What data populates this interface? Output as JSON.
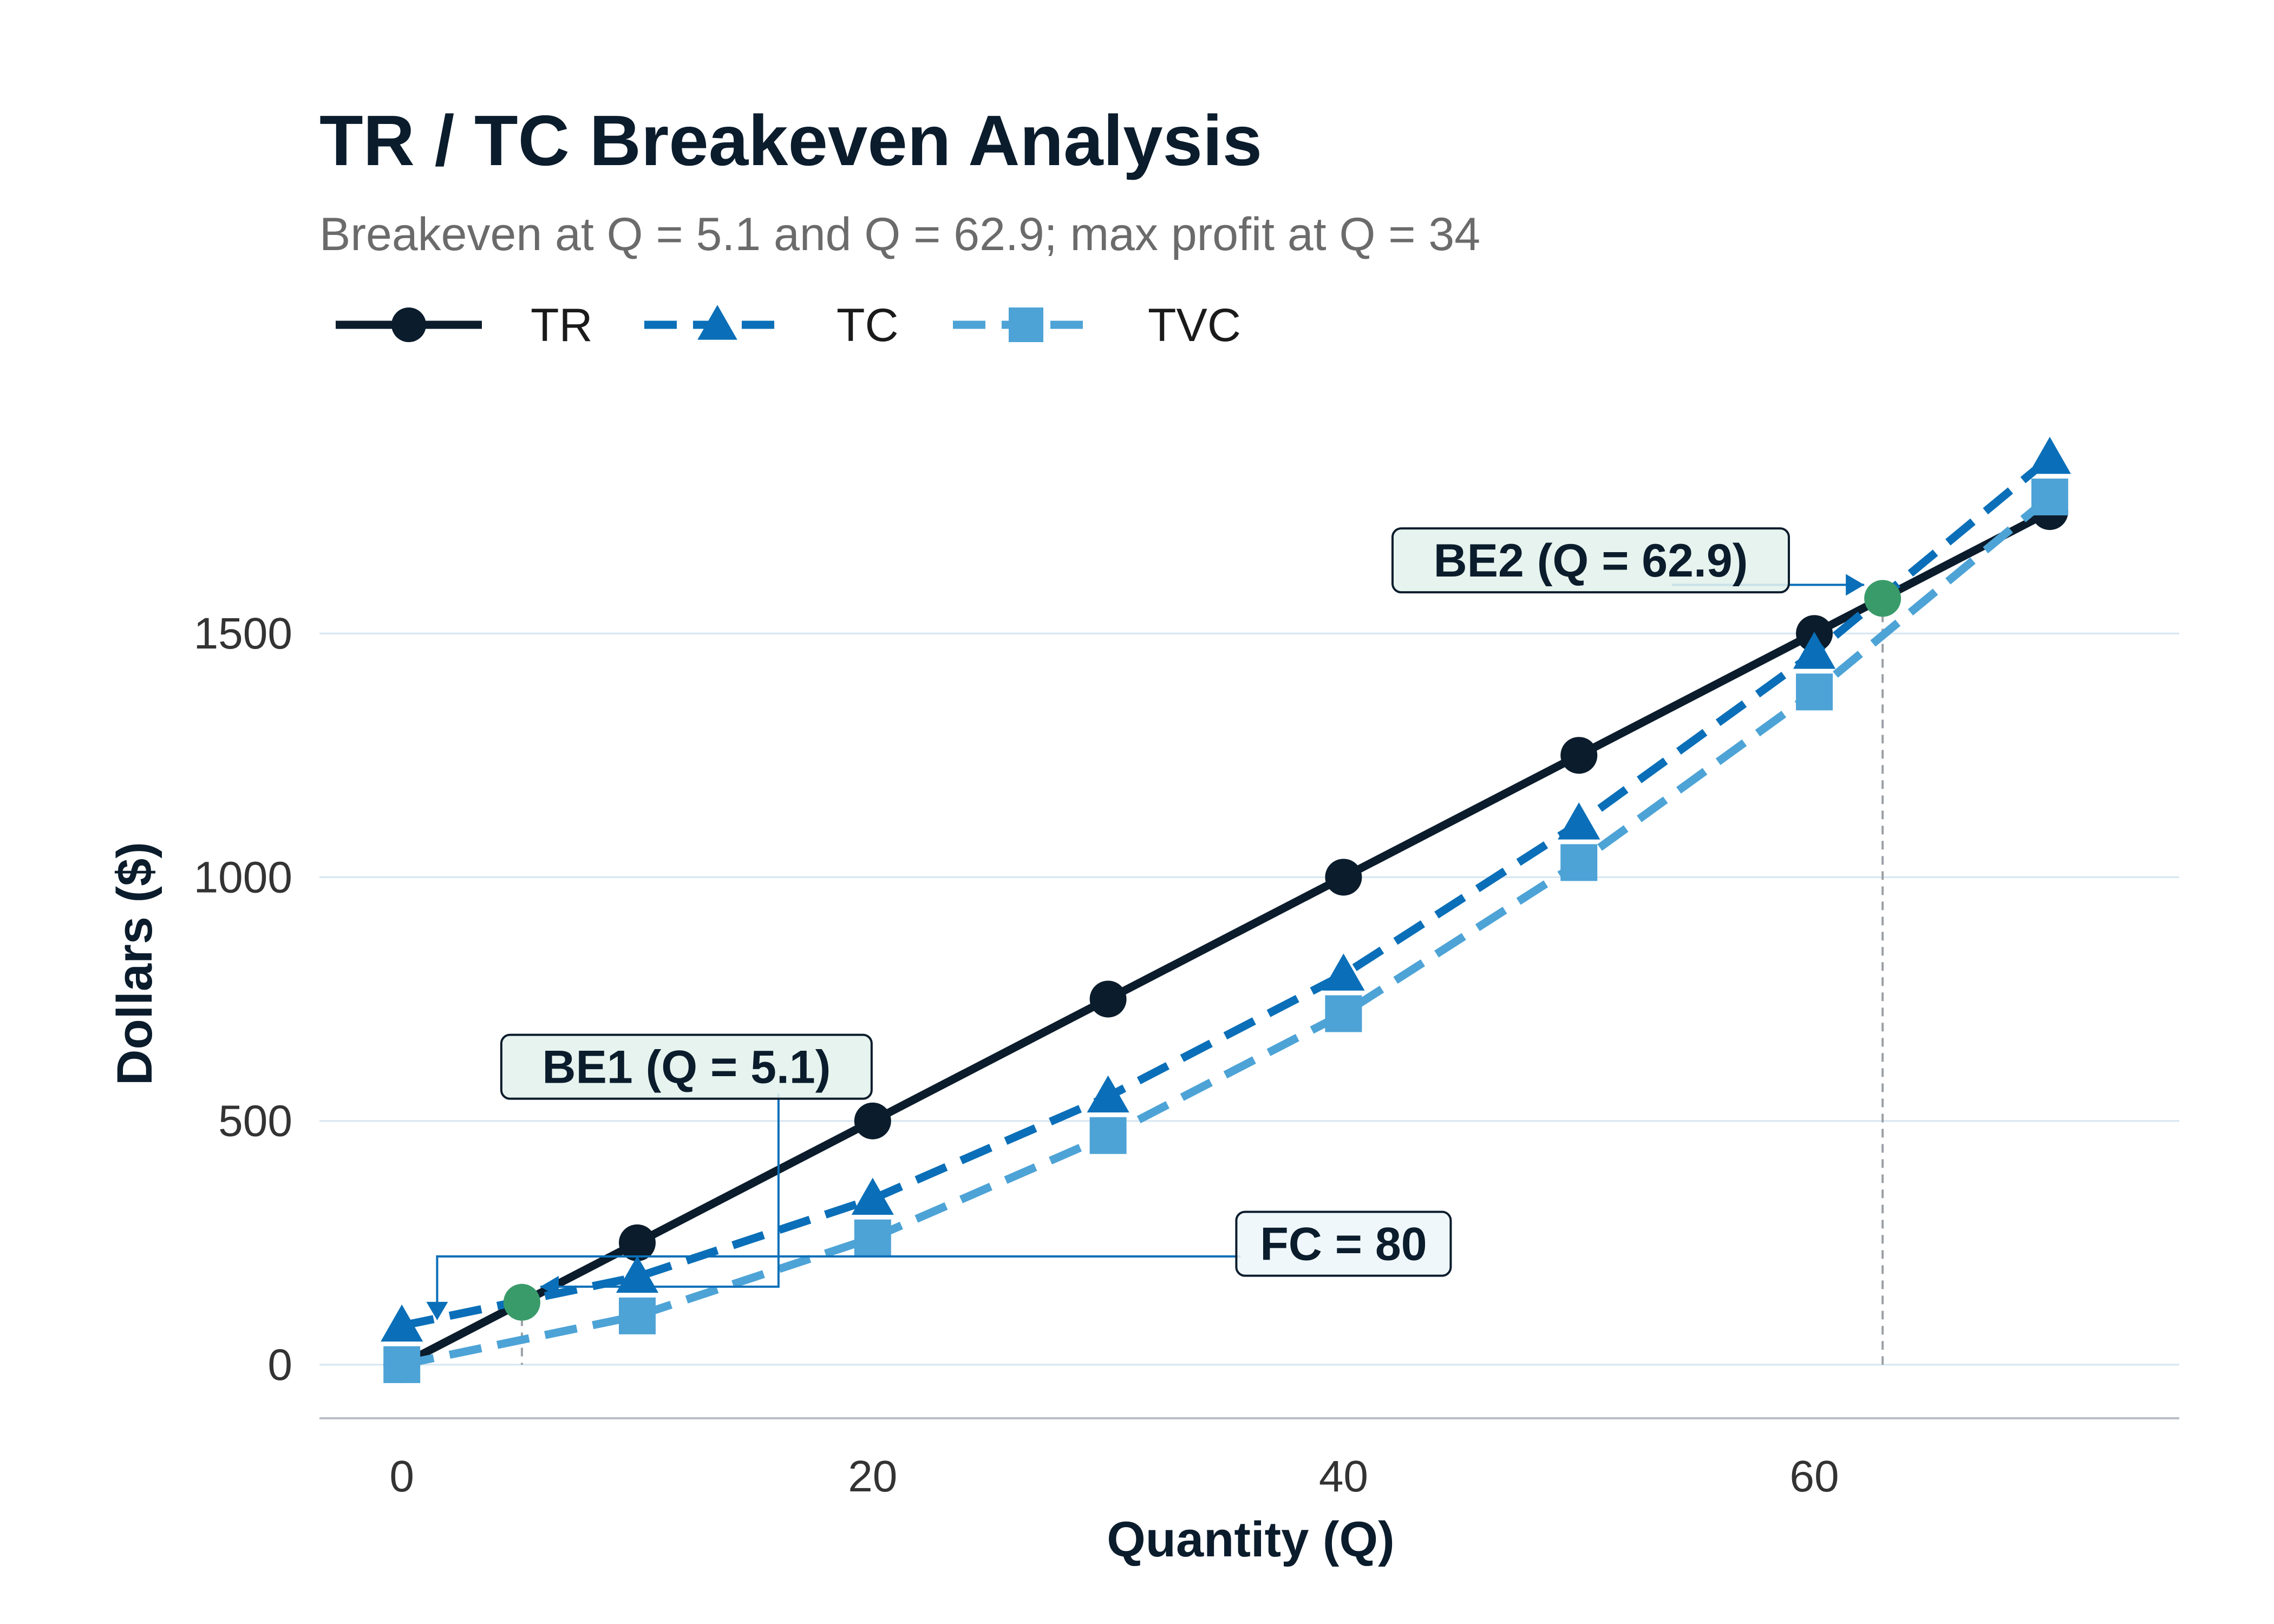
{
  "chart_data": {
    "type": "line",
    "title": "TR / TC Breakeven Analysis",
    "subtitle": "Breakeven at Q = 5.1 and Q = 62.9; max profit at Q = 34",
    "xlabel": "Quantity (Q)",
    "ylabel": "Dollars ($)",
    "xlim": [
      -3.5,
      75.5
    ],
    "ylim": [
      -110,
      1900
    ],
    "x_ticks": [
      0,
      20,
      40,
      60
    ],
    "y_ticks": [
      0,
      500,
      1000,
      1500
    ],
    "grid": "horizontal",
    "legend_position": "top-left",
    "x": [
      0,
      10,
      20,
      30,
      40,
      50,
      60,
      70
    ],
    "series": [
      {
        "name": "TR",
        "values": [
          0,
          250,
          500,
          750,
          1000,
          1250,
          1500,
          1750
        ],
        "color": "#0b1c2c",
        "line_style": "solid",
        "marker": "circle"
      },
      {
        "name": "TC",
        "values": [
          80,
          180,
          340,
          550,
          800,
          1110,
          1460,
          1860
        ],
        "color": "#0a6fb8",
        "line_style": "dashed",
        "marker": "triangle"
      },
      {
        "name": "TVC",
        "values": [
          0,
          100,
          260,
          470,
          720,
          1030,
          1380,
          1780
        ],
        "color": "#4da3d6",
        "line_style": "dashed",
        "marker": "square"
      }
    ],
    "breakeven_points": [
      {
        "x": 5.1,
        "y": 128,
        "color": "#3a9b6a"
      },
      {
        "x": 62.9,
        "y": 1572,
        "color": "#3a9b6a"
      }
    ],
    "annotations": [
      {
        "text": "BE1 (Q = 5.1)",
        "target_x": 5.1,
        "target_y": 128
      },
      {
        "text": "BE2 (Q = 62.9)",
        "target_x": 62.9,
        "target_y": 1572
      },
      {
        "text": "FC = 80",
        "target_x": 1.5,
        "target_y": 80
      }
    ]
  }
}
